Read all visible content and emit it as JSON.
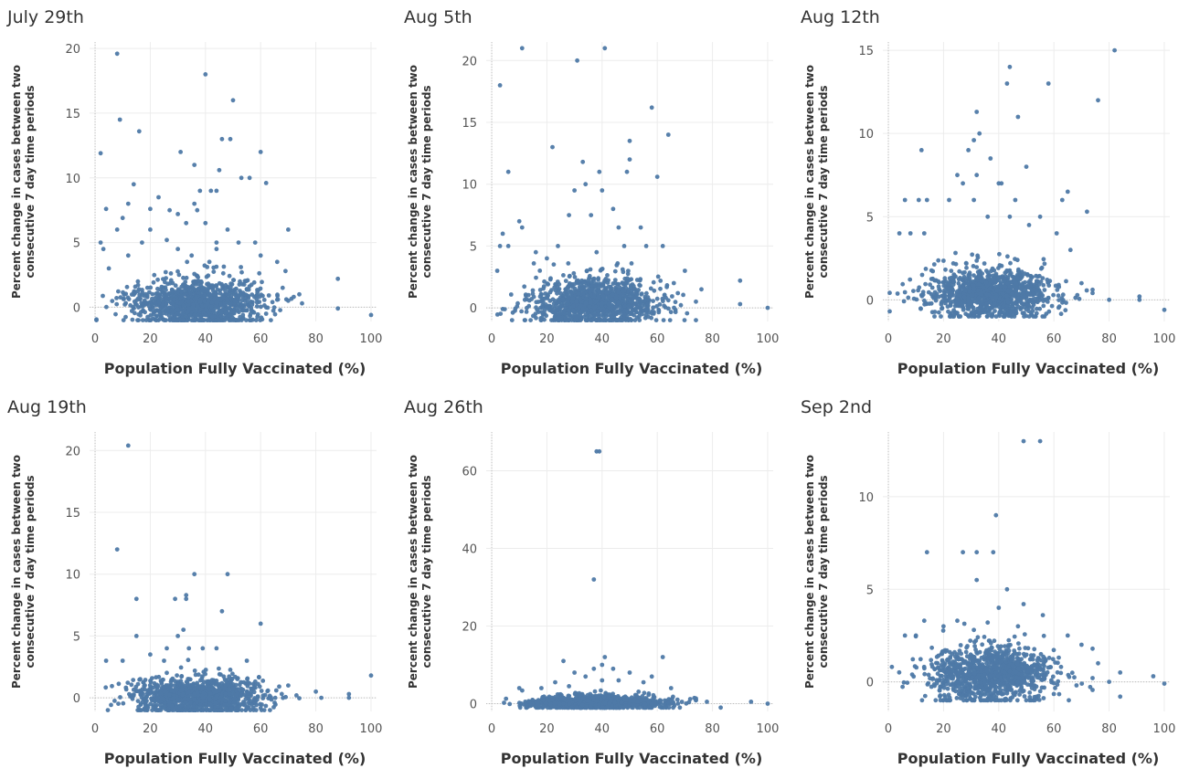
{
  "chart_data": [
    {
      "type": "scatter",
      "title": "July 29th",
      "xlabel": "Population Fully Vaccinated (%)",
      "ylabel_lines": [
        "Percent change in cases between two",
        "consecutive 7 day time periods"
      ],
      "xlim": [
        -2,
        102
      ],
      "ylim": [
        -1.1,
        20.5
      ],
      "xticks": [
        0,
        20,
        40,
        60,
        80,
        100
      ],
      "yticks": [
        0,
        5,
        10,
        15,
        20
      ],
      "grid": true,
      "color": "#4e79a7",
      "points": [
        [
          8,
          19.6
        ],
        [
          40,
          18.0
        ],
        [
          50,
          16.0
        ],
        [
          9,
          14.5
        ],
        [
          16,
          13.6
        ],
        [
          46,
          13.0
        ],
        [
          49,
          13.0
        ],
        [
          2,
          11.9
        ],
        [
          31,
          12.0
        ],
        [
          60,
          12.0
        ],
        [
          36,
          11.0
        ],
        [
          45,
          10.6
        ],
        [
          53,
          10.0
        ],
        [
          56,
          10.0
        ],
        [
          62,
          9.6
        ],
        [
          14,
          9.5
        ],
        [
          38,
          9.0
        ],
        [
          42,
          9.0
        ],
        [
          44,
          9.0
        ],
        [
          23,
          8.5
        ],
        [
          36,
          8.0
        ],
        [
          12,
          8.0
        ],
        [
          4,
          7.6
        ],
        [
          20,
          7.6
        ],
        [
          30,
          7.2
        ],
        [
          37,
          7.5
        ],
        [
          10,
          6.9
        ],
        [
          27,
          7.5
        ],
        [
          70,
          6.0
        ],
        [
          8,
          6.0
        ],
        [
          33,
          6.5
        ],
        [
          40,
          6.5
        ],
        [
          48,
          6.0
        ],
        [
          20,
          6.0
        ],
        [
          2,
          5.0
        ],
        [
          26,
          5.2
        ],
        [
          44,
          5.0
        ],
        [
          52,
          5.0
        ],
        [
          58,
          5.0
        ],
        [
          17,
          5.0
        ],
        [
          3,
          4.5
        ],
        [
          12,
          4.0
        ],
        [
          30,
          4.5
        ],
        [
          44,
          4.5
        ],
        [
          60,
          4.0
        ],
        [
          35,
          4.0
        ],
        [
          66,
          3.5
        ],
        [
          88,
          2.2
        ],
        [
          75,
          0.3
        ],
        [
          88,
          -0.1
        ],
        [
          100,
          -0.6
        ],
        [
          70,
          0.5
        ],
        [
          62,
          -0.5
        ],
        [
          69,
          2.8
        ],
        [
          5,
          3.0
        ],
        [
          68,
          1.5
        ],
        [
          72,
          0.8
        ]
      ],
      "cluster": {
        "n": 1100,
        "xmean": 37,
        "xsd": 11.5,
        "ymean": 0.3,
        "ysd": 1.0,
        "ymin": -1.0,
        "seed": 11
      }
    },
    {
      "type": "scatter",
      "title": "Aug 5th",
      "xlabel": "Population Fully Vaccinated (%)",
      "ylabel_lines": [
        "Percent change in cases between two",
        "consecutive 7 day time periods"
      ],
      "xlim": [
        -2,
        102
      ],
      "ylim": [
        -1.1,
        21.5
      ],
      "xticks": [
        0,
        20,
        40,
        60,
        80,
        100
      ],
      "yticks": [
        0,
        5,
        10,
        15,
        20
      ],
      "grid": true,
      "color": "#4e79a7",
      "points": [
        [
          11,
          21.0
        ],
        [
          41,
          21.0
        ],
        [
          31,
          20.0
        ],
        [
          3,
          18.0
        ],
        [
          58,
          16.2
        ],
        [
          64,
          14.0
        ],
        [
          50,
          13.5
        ],
        [
          22,
          13.0
        ],
        [
          33,
          11.8
        ],
        [
          39,
          11.0
        ],
        [
          49,
          11.0
        ],
        [
          6,
          11.0
        ],
        [
          60,
          10.6
        ],
        [
          50,
          12.0
        ],
        [
          34,
          10.0
        ],
        [
          30,
          9.5
        ],
        [
          40,
          9.5
        ],
        [
          44,
          8.0
        ],
        [
          28,
          7.5
        ],
        [
          36,
          7.5
        ],
        [
          10,
          7.0
        ],
        [
          46,
          6.5
        ],
        [
          54,
          6.5
        ],
        [
          11,
          6.5
        ],
        [
          3,
          5.0
        ],
        [
          6,
          5.0
        ],
        [
          24,
          5.0
        ],
        [
          48,
          5.0
        ],
        [
          56,
          5.0
        ],
        [
          62,
          5.0
        ],
        [
          4,
          6.0
        ],
        [
          16,
          4.5
        ],
        [
          38,
          4.5
        ],
        [
          20,
          4.0
        ],
        [
          90,
          2.2
        ],
        [
          100,
          0.0
        ],
        [
          90,
          0.3
        ],
        [
          76,
          1.5
        ],
        [
          70,
          3.0
        ],
        [
          2,
          3.0
        ],
        [
          74,
          0.5
        ],
        [
          66,
          2.0
        ]
      ],
      "cluster": {
        "n": 1100,
        "xmean": 37,
        "xsd": 11.5,
        "ymean": 0.4,
        "ysd": 1.0,
        "ymin": -1.0,
        "seed": 23
      }
    },
    {
      "type": "scatter",
      "title": "Aug 12th",
      "xlabel": "Population Fully Vaccinated (%)",
      "ylabel_lines": [
        "Percent change in cases between two",
        "consecutive 7 day time periods"
      ],
      "xlim": [
        -2,
        102
      ],
      "ylim": [
        -1.3,
        15.5
      ],
      "xticks": [
        0,
        20,
        40,
        60,
        80,
        100
      ],
      "yticks": [
        0,
        5,
        10,
        15
      ],
      "grid": true,
      "color": "#4e79a7",
      "points": [
        [
          82,
          15.0
        ],
        [
          44,
          14.0
        ],
        [
          43,
          13.0
        ],
        [
          58,
          13.0
        ],
        [
          76,
          12.0
        ],
        [
          32,
          11.3
        ],
        [
          47,
          11.0
        ],
        [
          33,
          10.0
        ],
        [
          31,
          9.6
        ],
        [
          12,
          9.0
        ],
        [
          29,
          9.0
        ],
        [
          37,
          8.5
        ],
        [
          50,
          8.0
        ],
        [
          25,
          7.5
        ],
        [
          32,
          7.5
        ],
        [
          40,
          7.0
        ],
        [
          41,
          7.0
        ],
        [
          27,
          7.0
        ],
        [
          6,
          6.0
        ],
        [
          11,
          6.0
        ],
        [
          14,
          6.0
        ],
        [
          46,
          6.0
        ],
        [
          65,
          6.5
        ],
        [
          63,
          6.0
        ],
        [
          22,
          6.0
        ],
        [
          31,
          6.0
        ],
        [
          72,
          5.3
        ],
        [
          44,
          5.0
        ],
        [
          55,
          5.0
        ],
        [
          36,
          5.0
        ],
        [
          4,
          4.0
        ],
        [
          8,
          4.0
        ],
        [
          13,
          4.0
        ],
        [
          61,
          4.0
        ],
        [
          51,
          4.5
        ],
        [
          80,
          0.0
        ],
        [
          91,
          0.2
        ],
        [
          100,
          -0.6
        ],
        [
          91,
          0.0
        ],
        [
          70,
          1.0
        ],
        [
          66,
          3.0
        ]
      ],
      "cluster": {
        "n": 1100,
        "xmean": 37,
        "xsd": 11.5,
        "ymean": 0.4,
        "ysd": 0.8,
        "ymin": -1.0,
        "seed": 37
      }
    },
    {
      "type": "scatter",
      "title": "Aug 19th",
      "xlabel": "Population Fully Vaccinated (%)",
      "ylabel_lines": [
        "Percent change in cases between two",
        "consecutive 7 day time periods"
      ],
      "xlim": [
        -2,
        102
      ],
      "ylim": [
        -1.1,
        21.5
      ],
      "xticks": [
        0,
        20,
        40,
        60,
        80,
        100
      ],
      "yticks": [
        0,
        5,
        10,
        15,
        20
      ],
      "grid": true,
      "color": "#4e79a7",
      "points": [
        [
          12,
          20.4
        ],
        [
          8,
          12.0
        ],
        [
          36,
          10.0
        ],
        [
          48,
          10.0
        ],
        [
          33,
          8.3
        ],
        [
          15,
          8.0
        ],
        [
          29,
          8.0
        ],
        [
          33,
          8.0
        ],
        [
          46,
          7.0
        ],
        [
          60,
          6.0
        ],
        [
          32,
          5.5
        ],
        [
          15,
          5.0
        ],
        [
          30,
          5.0
        ],
        [
          26,
          4.0
        ],
        [
          34,
          4.0
        ],
        [
          39,
          4.0
        ],
        [
          44,
          4.0
        ],
        [
          20,
          3.5
        ],
        [
          4,
          3.0
        ],
        [
          10,
          3.0
        ],
        [
          55,
          3.0
        ],
        [
          25,
          3.0
        ],
        [
          100,
          1.8
        ],
        [
          92,
          0.3
        ],
        [
          92,
          0.0
        ],
        [
          82,
          0.0
        ],
        [
          80,
          0.5
        ],
        [
          70,
          1.0
        ],
        [
          73,
          0.2
        ]
      ],
      "cluster": {
        "n": 1100,
        "xmean": 37,
        "xsd": 12,
        "ymean": 0.1,
        "ysd": 0.8,
        "ymin": -1.0,
        "seed": 51
      }
    },
    {
      "type": "scatter",
      "title": "Aug 26th",
      "xlabel": "Population Fully Vaccinated (%)",
      "ylabel_lines": [
        "Percent change in cases between two",
        "consecutive 7 day time periods"
      ],
      "xlim": [
        -2,
        102
      ],
      "ylim": [
        -2,
        70
      ],
      "xticks": [
        0,
        20,
        40,
        60,
        80,
        100
      ],
      "yticks": [
        0,
        20,
        40,
        60
      ],
      "grid": true,
      "color": "#4e79a7",
      "points": [
        [
          38,
          65.0
        ],
        [
          39,
          65.0
        ],
        [
          37,
          32.0
        ],
        [
          41,
          12.0
        ],
        [
          62,
          12.0
        ],
        [
          26,
          11.0
        ],
        [
          40,
          10.0
        ],
        [
          37,
          9.0
        ],
        [
          44,
          9.0
        ],
        [
          30,
          8.0
        ],
        [
          50,
          8.0
        ],
        [
          34,
          7.0
        ],
        [
          58,
          7.0
        ],
        [
          46,
          6.0
        ],
        [
          23,
          5.5
        ],
        [
          55,
          5.5
        ],
        [
          40,
          6.0
        ],
        [
          10,
          4.0
        ],
        [
          18,
          4.0
        ],
        [
          65,
          4.0
        ],
        [
          28,
          4.5
        ],
        [
          94,
          0.5
        ],
        [
          100,
          0.0
        ],
        [
          83,
          -1.0
        ],
        [
          78,
          0.5
        ],
        [
          74,
          1.0
        ]
      ],
      "cluster": {
        "n": 1100,
        "xmean": 38,
        "xsd": 12,
        "ymean": 0.2,
        "ysd": 0.9,
        "ymin": -1.0,
        "seed": 67
      }
    },
    {
      "type": "scatter",
      "title": "Sep 2nd",
      "xlabel": "Population Fully Vaccinated (%)",
      "ylabel_lines": [
        "Percent change in cases between two",
        "consecutive 7 day time periods"
      ],
      "xlim": [
        -2,
        102
      ],
      "ylim": [
        -1.6,
        13.5
      ],
      "xticks": [
        0,
        20,
        40,
        60,
        80,
        100
      ],
      "yticks": [
        0,
        5,
        10
      ],
      "grid": true,
      "color": "#4e79a7",
      "points": [
        [
          49,
          13.0
        ],
        [
          55,
          13.0
        ],
        [
          39,
          9.0
        ],
        [
          14,
          7.0
        ],
        [
          27,
          7.0
        ],
        [
          32,
          7.0
        ],
        [
          38,
          7.0
        ],
        [
          32,
          5.5
        ],
        [
          43,
          5.0
        ],
        [
          49,
          4.2
        ],
        [
          40,
          4.0
        ],
        [
          56,
          3.6
        ],
        [
          13,
          3.3
        ],
        [
          25,
          3.3
        ],
        [
          36,
          3.2
        ],
        [
          20,
          3.0
        ],
        [
          47,
          3.0
        ],
        [
          31,
          2.8
        ],
        [
          6,
          2.5
        ],
        [
          65,
          2.5
        ],
        [
          70,
          2.0
        ],
        [
          10,
          2.5
        ],
        [
          84,
          0.5
        ],
        [
          96,
          0.3
        ],
        [
          100,
          -0.1
        ],
        [
          84,
          -0.8
        ],
        [
          80,
          0.0
        ],
        [
          76,
          1.0
        ],
        [
          74,
          0.2
        ]
      ],
      "cluster": {
        "n": 1100,
        "xmean": 38,
        "xsd": 11.5,
        "ymean": 0.4,
        "ysd": 0.8,
        "ymin": -1.0,
        "seed": 79
      }
    }
  ]
}
